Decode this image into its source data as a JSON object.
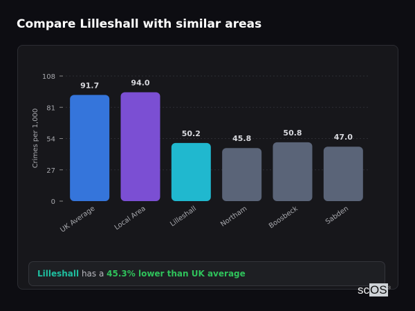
{
  "page_title": "Compare Lilleshall with similar areas",
  "chart_data": {
    "type": "bar",
    "title": "",
    "xlabel": "",
    "ylabel": "Crimes per 1,000",
    "ylim": [
      0,
      108
    ],
    "yticks": [
      0,
      27,
      54,
      81,
      108
    ],
    "grid": "horizontal dashed",
    "categories": [
      "UK Average",
      "Local Area",
      "Lilleshall",
      "Northam",
      "Boosbeck",
      "Sabden"
    ],
    "values": [
      91.7,
      94.0,
      50.2,
      45.8,
      50.8,
      47.0
    ],
    "data_labels": [
      "91.7",
      "94.0",
      "50.2",
      "45.8",
      "50.8",
      "47.0"
    ],
    "colors": [
      "#3575db",
      "#7b4fd3",
      "#20b8cf",
      "#5a6478",
      "#5a6478",
      "#5a6478"
    ]
  },
  "summary": {
    "area": "Lilleshall",
    "connector": " has a ",
    "comparison": "45.3% lower than UK average",
    "area_color": "#1fbfa0",
    "comparison_color": "#2fc25b"
  },
  "logo": {
    "text_sc": "sc",
    "text_os": "OS",
    "mark": "®"
  }
}
